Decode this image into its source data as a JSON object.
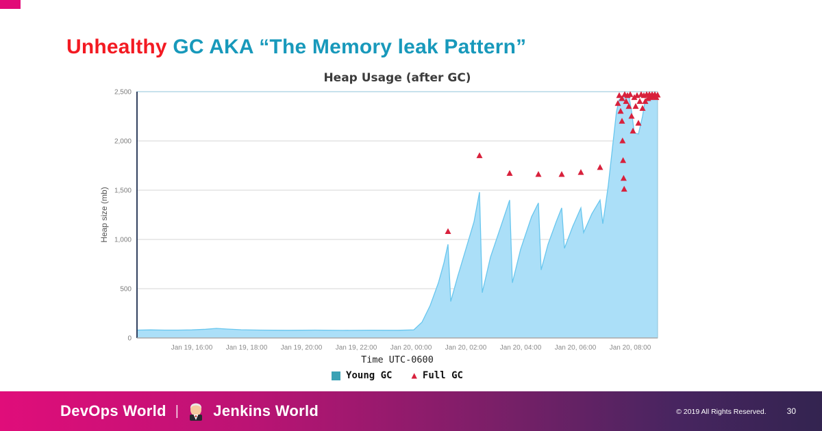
{
  "slide": {
    "title_red": "Unhealthy",
    "title_teal": "GC AKA “The Memory leak Pattern”"
  },
  "colors": {
    "title_red": "#f31a22",
    "title_teal": "#1899bb",
    "corner_accent": "#e20a78",
    "footer_gradient_left": "#e00d7a",
    "footer_gradient_right": "#332450",
    "area_fill": "#abdff8",
    "young_gc_legend": "#3aa2b5",
    "full_gc_red": "#d8213c"
  },
  "chart_data": {
    "type": "area",
    "title": "Heap Usage (after GC)",
    "xlabel": "Time UTC-0600",
    "ylabel": "Heap size (mb)",
    "ylim": [
      0,
      2500
    ],
    "x_domain": [
      0,
      19
    ],
    "grid": true,
    "legend_position": "bottom",
    "y_ticks": [
      {
        "value": 0,
        "label": "0"
      },
      {
        "value": 500,
        "label": "500"
      },
      {
        "value": 1000,
        "label": "1,000"
      },
      {
        "value": 1500,
        "label": "1,500"
      },
      {
        "value": 2000,
        "label": "2,000"
      },
      {
        "value": 2500,
        "label": "2,500"
      }
    ],
    "x_ticks": [
      {
        "h": 2,
        "label": "Jan 19, 16:00"
      },
      {
        "h": 4,
        "label": "Jan 19, 18:00"
      },
      {
        "h": 6,
        "label": "Jan 19, 20:00"
      },
      {
        "h": 8,
        "label": "Jan 19, 22:00"
      },
      {
        "h": 10,
        "label": "Jan 20, 00:00"
      },
      {
        "h": 12,
        "label": "Jan 20, 02:00"
      },
      {
        "h": 14,
        "label": "Jan 20, 04:00"
      },
      {
        "h": 16,
        "label": "Jan 20, 06:00"
      },
      {
        "h": 18,
        "label": "Jan 20, 08:00"
      }
    ],
    "series": [
      {
        "name": "Young GC",
        "type": "area",
        "fill": "#abdff8",
        "color": "#68c6ee",
        "legend_color": "#3aa2b5",
        "points": [
          [
            0,
            80
          ],
          [
            0.5,
            82
          ],
          [
            1,
            80
          ],
          [
            1.5,
            80
          ],
          [
            2,
            82
          ],
          [
            2.5,
            88
          ],
          [
            2.9,
            97
          ],
          [
            3.3,
            90
          ],
          [
            3.8,
            83
          ],
          [
            4.5,
            80
          ],
          [
            5.5,
            78
          ],
          [
            6.5,
            80
          ],
          [
            7.5,
            77
          ],
          [
            8.5,
            79
          ],
          [
            9.5,
            78
          ],
          [
            10.1,
            82
          ],
          [
            10.4,
            160
          ],
          [
            10.7,
            330
          ],
          [
            11,
            560
          ],
          [
            11.2,
            760
          ],
          [
            11.35,
            950
          ],
          [
            11.45,
            370
          ],
          [
            11.7,
            620
          ],
          [
            12,
            900
          ],
          [
            12.3,
            1180
          ],
          [
            12.5,
            1480
          ],
          [
            12.6,
            460
          ],
          [
            12.9,
            820
          ],
          [
            13.3,
            1150
          ],
          [
            13.6,
            1400
          ],
          [
            13.7,
            560
          ],
          [
            14,
            900
          ],
          [
            14.4,
            1230
          ],
          [
            14.65,
            1370
          ],
          [
            14.75,
            690
          ],
          [
            15,
            950
          ],
          [
            15.3,
            1180
          ],
          [
            15.5,
            1320
          ],
          [
            15.6,
            910
          ],
          [
            15.9,
            1130
          ],
          [
            16.2,
            1320
          ],
          [
            16.3,
            1070
          ],
          [
            16.6,
            1260
          ],
          [
            16.9,
            1400
          ],
          [
            17,
            1160
          ],
          [
            17.1,
            1350
          ],
          [
            17.2,
            1550
          ],
          [
            17.3,
            1800
          ],
          [
            17.4,
            2050
          ],
          [
            17.5,
            2300
          ],
          [
            17.6,
            2420
          ],
          [
            17.75,
            2450
          ],
          [
            17.95,
            2460
          ],
          [
            18.05,
            2300
          ],
          [
            18.15,
            2080
          ],
          [
            18.3,
            2070
          ],
          [
            18.45,
            2250
          ],
          [
            18.55,
            2420
          ],
          [
            18.7,
            2450
          ],
          [
            19,
            2460
          ]
        ]
      },
      {
        "name": "Full GC",
        "type": "scatter",
        "marker": "triangle",
        "color": "#d8213c",
        "points": [
          [
            11.35,
            1080
          ],
          [
            12.5,
            1850
          ],
          [
            13.6,
            1670
          ],
          [
            14.65,
            1660
          ],
          [
            15.5,
            1660
          ],
          [
            16.2,
            1680
          ],
          [
            16.9,
            1730
          ],
          [
            17.55,
            2380
          ],
          [
            17.6,
            2460
          ],
          [
            17.65,
            2300
          ],
          [
            17.7,
            2430
          ],
          [
            17.7,
            2200
          ],
          [
            17.72,
            2000
          ],
          [
            17.74,
            1800
          ],
          [
            17.76,
            1620
          ],
          [
            17.78,
            1510
          ],
          [
            17.8,
            2470
          ],
          [
            17.85,
            2400
          ],
          [
            17.9,
            2460
          ],
          [
            17.95,
            2350
          ],
          [
            18,
            2470
          ],
          [
            18.05,
            2250
          ],
          [
            18.1,
            2100
          ],
          [
            18.15,
            2440
          ],
          [
            18.2,
            2350
          ],
          [
            18.25,
            2460
          ],
          [
            18.3,
            2180
          ],
          [
            18.35,
            2400
          ],
          [
            18.4,
            2470
          ],
          [
            18.45,
            2330
          ],
          [
            18.5,
            2460
          ],
          [
            18.55,
            2400
          ],
          [
            18.6,
            2470
          ],
          [
            18.65,
            2430
          ],
          [
            18.7,
            2470
          ],
          [
            18.75,
            2440
          ],
          [
            18.8,
            2470
          ],
          [
            18.85,
            2450
          ],
          [
            18.9,
            2470
          ],
          [
            18.95,
            2440
          ],
          [
            19,
            2465
          ]
        ]
      }
    ]
  },
  "footer": {
    "brand_left": "DevOps World",
    "separator": "|",
    "brand_right": "Jenkins World",
    "copyright": "© 2019 All Rights Reserved.",
    "page_number": "30"
  }
}
